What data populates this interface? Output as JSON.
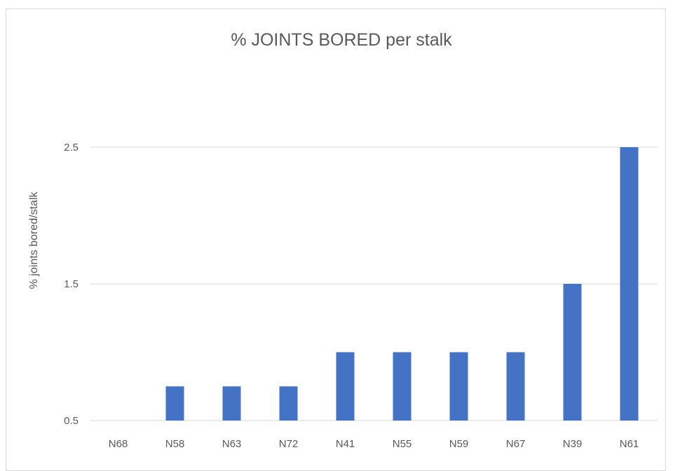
{
  "chart_data": {
    "type": "bar",
    "title": "% JOINTS BORED per stalk",
    "xlabel": "",
    "ylabel": "% joints bored/stalk",
    "categories": [
      "N68",
      "N58",
      "N63",
      "N72",
      "N41",
      "N55",
      "N59",
      "N67",
      "N39",
      "N61"
    ],
    "series": [
      {
        "values": [
          0.5,
          0.75,
          0.75,
          0.75,
          1.0,
          1.0,
          1.0,
          1.0,
          1.5,
          2.5
        ]
      }
    ],
    "y_ticks": [
      "0.5",
      "1.5",
      "2.5"
    ],
    "y_tick_values": [
      0.5,
      1.5,
      2.5
    ],
    "ylim": [
      0.5,
      2.5
    ],
    "grid": true,
    "legend": "none",
    "colors": {
      "bar": "#4472c4",
      "grid": "#d9d9d9",
      "text": "#595959"
    }
  }
}
